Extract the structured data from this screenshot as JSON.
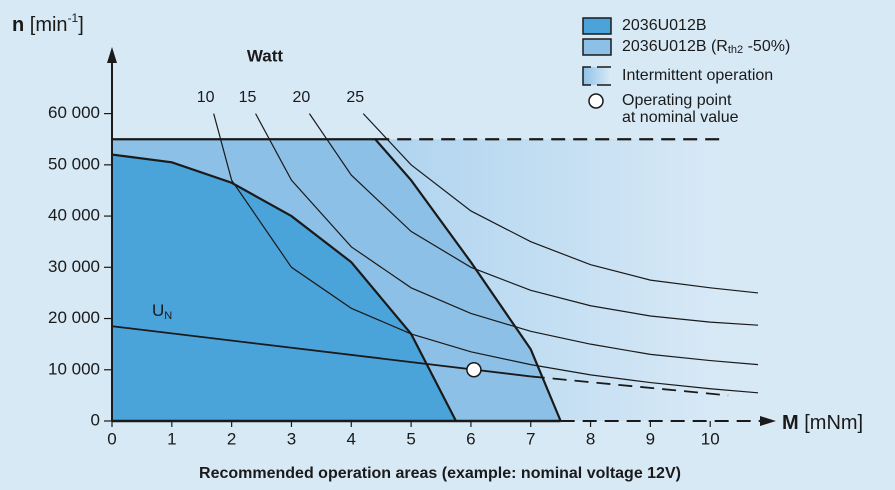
{
  "chart_data": {
    "type": "area-map",
    "y_label": [
      "n",
      " [min",
      "-1",
      "]"
    ],
    "x_label": [
      "M",
      " [mNm]"
    ],
    "power_label": "Watt",
    "caption": "Recommended operation areas (example: nominal voltage 12V)",
    "xlim": [
      0,
      11.1
    ],
    "ylim": [
      0,
      73000
    ],
    "xticks": [
      0,
      1,
      2,
      3,
      4,
      5,
      6,
      7,
      8,
      9,
      10
    ],
    "yticks": [
      0,
      {
        "value": 10000,
        "label": "10 000"
      },
      {
        "value": 20000,
        "label": "20 000"
      },
      {
        "value": 30000,
        "label": "30 000"
      },
      {
        "value": 40000,
        "label": "40 000"
      },
      {
        "value": 50000,
        "label": "50 000"
      },
      {
        "value": 60000,
        "label": "60 000"
      }
    ],
    "areas": [
      {
        "name": [
          "2036U012B (R",
          "th2",
          " -50%)"
        ],
        "color": "#8cc0e6",
        "x": [
          0,
          4.4,
          5,
          6,
          7,
          7.5
        ],
        "y": [
          55000,
          55000,
          47000,
          31000,
          14000,
          0
        ]
      },
      {
        "name": [
          "2036U012B"
        ],
        "color": "#4aa3d9",
        "x": [
          0,
          1,
          2,
          3,
          4,
          5,
          5.75
        ],
        "y": [
          52000,
          50500,
          46500,
          40000,
          31000,
          17000,
          0
        ]
      },
      {
        "name": [
          "Intermittent operation"
        ],
        "color": "#8fc3e9",
        "dashed": true,
        "x": [
          4.4,
          10.2
        ],
        "y": [
          55000,
          55000
        ]
      }
    ],
    "series": [
      {
        "name": "10",
        "color": "#1a1a1a",
        "x": [
          1.7,
          2,
          3,
          4,
          5,
          6,
          7,
          8,
          9,
          10,
          10.8
        ],
        "y": [
          60000,
          47000,
          30000,
          22000,
          17000,
          13500,
          11000,
          9000,
          7500,
          6300,
          5500
        ]
      },
      {
        "name": "15",
        "color": "#1a1a1a",
        "x": [
          2.4,
          3,
          4,
          5,
          6,
          7,
          8,
          9,
          10,
          10.8
        ],
        "y": [
          60000,
          47000,
          34000,
          26000,
          21000,
          17500,
          15000,
          13000,
          11800,
          11000
        ]
      },
      {
        "name": "20",
        "color": "#1a1a1a",
        "x": [
          3.3,
          4,
          5,
          6,
          7,
          8,
          9,
          10,
          10.8
        ],
        "y": [
          60000,
          48000,
          37000,
          30000,
          25500,
          22500,
          20500,
          19300,
          18700
        ]
      },
      {
        "name": "25",
        "color": "#1a1a1a",
        "x": [
          4.2,
          5,
          6,
          7,
          8,
          9,
          10,
          10.8
        ],
        "y": [
          60000,
          50000,
          41000,
          35000,
          30500,
          27500,
          26000,
          25000
        ]
      }
    ],
    "voltage_line": {
      "name": [
        "U",
        "N"
      ],
      "solid": {
        "x": [
          0,
          7.0
        ],
        "y": [
          18500,
          8700
        ]
      },
      "dashed": {
        "x": [
          7.0,
          10.3
        ],
        "y": [
          8700,
          5000
        ]
      }
    },
    "operating_point": {
      "name": [
        "Operating point",
        "at nominal value"
      ],
      "x": 6.05,
      "y": 10000
    }
  }
}
